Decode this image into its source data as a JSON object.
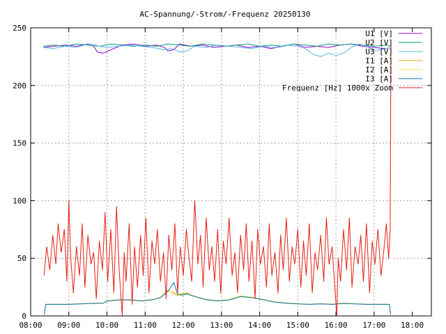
{
  "chart_data": {
    "type": "line",
    "title": "AC-Spannung/-Strom/-Frequenz 20250130",
    "xlabel": "",
    "ylabel": "",
    "x_unit": "hours",
    "xlim": [
      8.0,
      18.5
    ],
    "ylim": [
      0,
      250
    ],
    "x_ticks": [
      {
        "v": 8,
        "label": "08:00"
      },
      {
        "v": 9,
        "label": "09:00"
      },
      {
        "v": 10,
        "label": "10:00"
      },
      {
        "v": 11,
        "label": "11:00"
      },
      {
        "v": 12,
        "label": "12:00"
      },
      {
        "v": 13,
        "label": "13:00"
      },
      {
        "v": 14,
        "label": "14:00"
      },
      {
        "v": 15,
        "label": "15:00"
      },
      {
        "v": 16,
        "label": "16:00"
      },
      {
        "v": 17,
        "label": "17:00"
      },
      {
        "v": 18,
        "label": "18:00"
      }
    ],
    "y_ticks": [
      {
        "v": 0,
        "label": "0"
      },
      {
        "v": 50,
        "label": "50"
      },
      {
        "v": 100,
        "label": "100"
      },
      {
        "v": 150,
        "label": "150"
      },
      {
        "v": 200,
        "label": "200"
      },
      {
        "v": 250,
        "label": "250"
      }
    ],
    "grid": true,
    "legend_position": "top-right",
    "series": [
      {
        "name": "U1 [V]",
        "color": "#9400d3",
        "x": [
          8.33,
          8.6,
          8.9,
          9.2,
          9.5,
          9.65,
          9.75,
          9.9,
          10.1,
          10.4,
          10.7,
          11.0,
          11.3,
          11.5,
          11.6,
          11.75,
          11.9,
          12.2,
          12.5,
          12.8,
          13.1,
          13.4,
          13.7,
          14.0,
          14.3,
          14.6,
          14.9,
          15.2,
          15.5,
          15.8,
          16.1,
          16.4,
          16.7,
          17.0,
          17.3,
          17.45
        ],
        "y": [
          233,
          234,
          235,
          234,
          236,
          234,
          229,
          228,
          231,
          235,
          236,
          234,
          235,
          233,
          230,
          231,
          236,
          234,
          235,
          233,
          234,
          235,
          233,
          234,
          232,
          234,
          236,
          233,
          234,
          233,
          235,
          236,
          234,
          233,
          232,
          233
        ]
      },
      {
        "name": "U2 [V]",
        "color": "#009e73",
        "x": [
          8.33,
          8.6,
          8.9,
          9.2,
          9.5,
          9.8,
          10.1,
          10.4,
          10.7,
          11.0,
          11.3,
          11.6,
          11.9,
          12.2,
          12.5,
          12.8,
          13.1,
          13.4,
          13.7,
          14.0,
          14.3,
          14.6,
          14.9,
          15.2,
          15.5,
          15.8,
          16.1,
          16.4,
          16.7,
          17.0,
          17.3,
          17.45
        ],
        "y": [
          234,
          235,
          234,
          236,
          235,
          234,
          236,
          235,
          234,
          235,
          234,
          236,
          235,
          234,
          236,
          235,
          234,
          235,
          236,
          234,
          235,
          234,
          236,
          235,
          234,
          236,
          235,
          236,
          235,
          234,
          235,
          234
        ]
      },
      {
        "name": "U3 [V]",
        "color": "#56b4e9",
        "x": [
          8.33,
          8.6,
          8.9,
          9.2,
          9.4,
          9.6,
          9.8,
          10.0,
          10.3,
          10.6,
          10.9,
          11.2,
          11.5,
          11.7,
          11.9,
          12.1,
          12.3,
          12.6,
          12.9,
          13.2,
          13.5,
          13.8,
          14.1,
          14.4,
          14.7,
          15.0,
          15.2,
          15.4,
          15.6,
          15.8,
          16.0,
          16.2,
          16.4,
          16.6,
          16.8,
          17.0,
          17.3,
          17.45
        ],
        "y": [
          233,
          232,
          234,
          233,
          235,
          236,
          234,
          233,
          234,
          235,
          234,
          233,
          231,
          232,
          229,
          230,
          234,
          233,
          235,
          234,
          233,
          232,
          234,
          233,
          235,
          234,
          232,
          227,
          225,
          228,
          226,
          228,
          233,
          236,
          234,
          230,
          232,
          233
        ]
      },
      {
        "name": "I1 [A]",
        "color": "#e69f00",
        "x": [
          8.35,
          8.4,
          8.7,
          9.0,
          9.3,
          9.6,
          9.9,
          10.0,
          10.3,
          10.6,
          10.9,
          11.2,
          11.4,
          11.6,
          11.75,
          11.85,
          11.95,
          12.1,
          12.3,
          12.6,
          12.9,
          13.2,
          13.5,
          13.8,
          14.1,
          14.4,
          14.7,
          15.0,
          15.3,
          15.6,
          15.9,
          16.2,
          16.5,
          16.8,
          17.1,
          17.4,
          17.43
        ],
        "y": [
          1,
          10,
          10,
          10,
          10.5,
          11,
          11,
          13,
          14,
          14,
          13,
          14,
          16,
          22,
          20,
          18,
          19,
          20,
          17,
          14,
          13,
          14,
          17,
          16,
          14,
          12,
          11,
          10.5,
          10,
          10.5,
          10,
          11,
          10.5,
          10,
          10,
          10,
          1
        ]
      },
      {
        "name": "I2 [A]",
        "color": "#f0e442",
        "x": [
          8.35,
          8.4,
          8.7,
          9.0,
          9.3,
          9.6,
          9.9,
          10.0,
          10.3,
          10.6,
          10.9,
          11.2,
          11.4,
          11.6,
          11.75,
          11.85,
          11.95,
          12.1,
          12.3,
          12.6,
          12.9,
          13.2,
          13.5,
          13.8,
          14.1,
          14.4,
          14.7,
          15.0,
          15.3,
          15.6,
          15.9,
          16.2,
          16.5,
          16.8,
          17.1,
          17.4,
          17.43
        ],
        "y": [
          1,
          10,
          10,
          10.2,
          10.6,
          11,
          11.2,
          13.2,
          14.2,
          14.1,
          13.3,
          14.3,
          16.3,
          22.5,
          19,
          17.5,
          18.5,
          19.5,
          17.2,
          14.3,
          13.3,
          14.2,
          17.4,
          16.3,
          14.3,
          12.3,
          11.2,
          10.6,
          10.2,
          10.6,
          10.2,
          11.2,
          10.6,
          10.2,
          10.1,
          10.1,
          1
        ]
      },
      {
        "name": "I3 [A]",
        "color": "#0072b2",
        "x": [
          8.35,
          8.4,
          8.7,
          9.0,
          9.3,
          9.6,
          9.9,
          10.0,
          10.3,
          10.6,
          10.9,
          11.2,
          11.4,
          11.6,
          11.75,
          11.85,
          11.95,
          12.1,
          12.3,
          12.6,
          12.9,
          13.2,
          13.5,
          13.8,
          14.1,
          14.4,
          14.7,
          15.0,
          15.3,
          15.6,
          15.9,
          16.2,
          16.5,
          16.8,
          17.1,
          17.4,
          17.43
        ],
        "y": [
          1,
          10,
          10,
          10,
          10.4,
          10.8,
          11,
          12.8,
          13.8,
          13.9,
          13,
          14,
          15.8,
          21.5,
          29,
          19,
          18,
          19,
          16.8,
          14,
          13,
          13.8,
          16.8,
          15.8,
          14,
          12,
          11,
          10.4,
          10,
          10.4,
          10,
          10.8,
          10.4,
          10,
          10,
          10,
          1
        ]
      },
      {
        "name": "Frequenz [Hz] 1000x Zoom",
        "color": "#e51e10",
        "x": [
          8.35,
          8.42,
          8.5,
          8.58,
          8.66,
          8.72,
          8.8,
          8.88,
          8.95,
          9.0,
          9.05,
          9.12,
          9.2,
          9.28,
          9.35,
          9.42,
          9.5,
          9.58,
          9.65,
          9.72,
          9.8,
          9.88,
          9.95,
          10.02,
          10.1,
          10.18,
          10.25,
          10.32,
          10.4,
          10.45,
          10.5,
          10.58,
          10.66,
          10.72,
          10.8,
          10.88,
          10.95,
          11.02,
          11.1,
          11.18,
          11.25,
          11.32,
          11.4,
          11.48,
          11.55,
          11.62,
          11.7,
          11.78,
          11.85,
          11.92,
          12.0,
          12.08,
          12.15,
          12.22,
          12.3,
          12.38,
          12.45,
          12.52,
          12.6,
          12.68,
          12.75,
          12.82,
          12.9,
          12.98,
          13.05,
          13.12,
          13.2,
          13.28,
          13.35,
          13.42,
          13.5,
          13.58,
          13.65,
          13.72,
          13.8,
          13.88,
          13.95,
          14.02,
          14.1,
          14.18,
          14.25,
          14.32,
          14.4,
          14.48,
          14.55,
          14.62,
          14.7,
          14.78,
          14.85,
          14.92,
          15.0,
          15.08,
          15.15,
          15.22,
          15.3,
          15.38,
          15.45,
          15.52,
          15.6,
          15.68,
          15.75,
          15.82,
          15.9,
          15.98,
          16.02,
          16.06,
          16.12,
          16.2,
          16.28,
          16.35,
          16.42,
          16.5,
          16.58,
          16.65,
          16.72,
          16.8,
          16.88,
          16.95,
          17.02,
          17.1,
          17.18,
          17.25,
          17.32,
          17.38,
          17.42,
          17.44
        ],
        "y": [
          35,
          60,
          40,
          70,
          45,
          80,
          55,
          75,
          30,
          100,
          50,
          20,
          60,
          35,
          80,
          25,
          70,
          45,
          55,
          15,
          65,
          40,
          90,
          30,
          75,
          20,
          95,
          40,
          0,
          55,
          30,
          80,
          10,
          60,
          25,
          70,
          35,
          85,
          20,
          65,
          45,
          75,
          30,
          55,
          15,
          70,
          40,
          80,
          20,
          60,
          35,
          75,
          50,
          30,
          100,
          45,
          70,
          25,
          85,
          40,
          60,
          30,
          75,
          20,
          65,
          45,
          85,
          35,
          55,
          20,
          70,
          40,
          80,
          30,
          65,
          15,
          75,
          45,
          60,
          25,
          80,
          35,
          55,
          20,
          70,
          40,
          85,
          30,
          60,
          45,
          75,
          25,
          65,
          35,
          80,
          20,
          55,
          40,
          70,
          30,
          85,
          45,
          60,
          20,
          0,
          50,
          30,
          75,
          40,
          85,
          25,
          60,
          45,
          70,
          30,
          80,
          20,
          65,
          45,
          75,
          35,
          55,
          80,
          50,
          75,
          240
        ]
      }
    ]
  }
}
